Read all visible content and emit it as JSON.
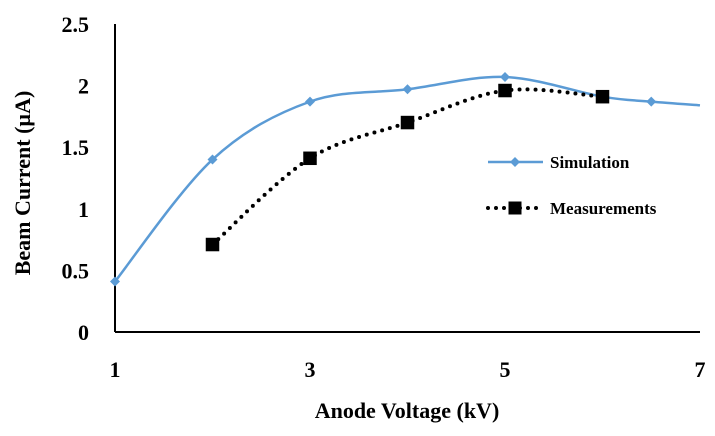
{
  "chart_data": {
    "type": "line",
    "title": "",
    "xlabel": "Anode Voltage (kV)",
    "ylabel": "Beam Current  (µA)",
    "xlim": [
      1,
      7
    ],
    "ylim": [
      0,
      2.5
    ],
    "xticks": [
      "1",
      "3",
      "5",
      "7"
    ],
    "yticks": [
      "0",
      "0.5",
      "1",
      "1.5",
      "2",
      "2.5"
    ],
    "grid": false,
    "legend_position": "right",
    "series": [
      {
        "name": "Simulation",
        "color": "#5B9BD5",
        "marker": "diamond",
        "line_style": "solid",
        "smooth": true,
        "x": [
          1,
          2,
          3,
          4,
          5,
          6,
          6.5,
          7
        ],
        "y": [
          0.41,
          1.4,
          1.87,
          1.97,
          2.07,
          1.91,
          1.87,
          1.84
        ],
        "marker_x": [
          1,
          2,
          3,
          4,
          5,
          6,
          6.5
        ]
      },
      {
        "name": "Measurements",
        "color": "#000000",
        "marker": "square",
        "marker_fill": "#000000",
        "marker_edge": "#000000",
        "line_style": "dotted",
        "smooth": true,
        "x": [
          2,
          3,
          4,
          5,
          6
        ],
        "y": [
          0.71,
          1.41,
          1.7,
          1.96,
          1.91
        ]
      }
    ]
  }
}
